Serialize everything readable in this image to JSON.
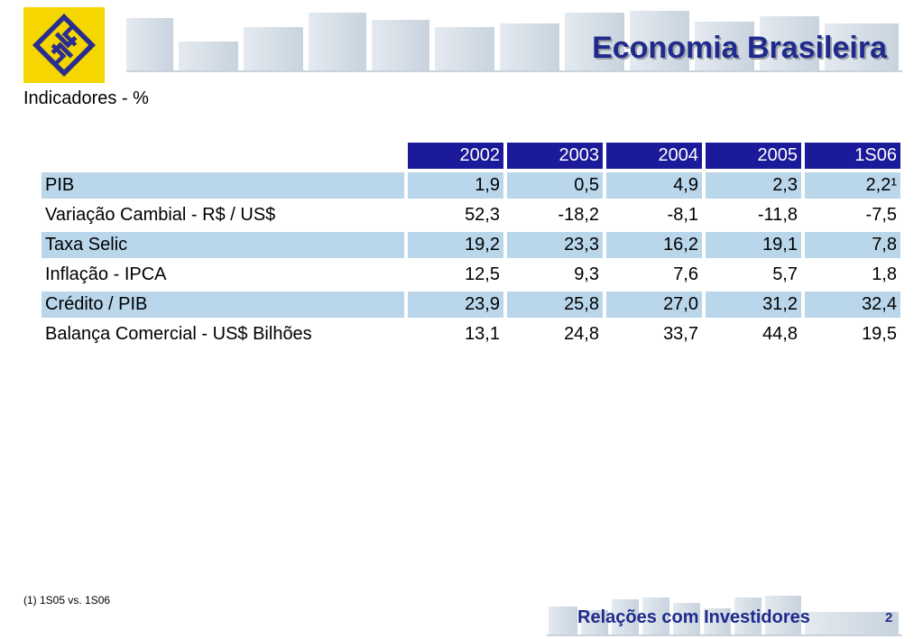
{
  "header": {
    "title": "Economia Brasileira",
    "brand_color": "#f5d600",
    "title_color": "#1f2a8c"
  },
  "subtitle": "Indicadores - %",
  "table": {
    "columns": [
      "2002",
      "2003",
      "2004",
      "2005",
      "1S06"
    ],
    "rows": [
      {
        "label": "PIB",
        "values": [
          "1,9",
          "0,5",
          "4,9",
          "2,3",
          "2,2¹"
        ]
      },
      {
        "label": "Variação Cambial - R$ / US$",
        "values": [
          "52,3",
          "-18,2",
          "-8,1",
          "-11,8",
          "-7,5"
        ]
      },
      {
        "label": "Taxa Selic",
        "values": [
          "19,2",
          "23,3",
          "16,2",
          "19,1",
          "7,8"
        ]
      },
      {
        "label": "Inflação - IPCA",
        "values": [
          "12,5",
          "9,3",
          "7,6",
          "5,7",
          "1,8"
        ]
      },
      {
        "label": "Crédito / PIB",
        "values": [
          "23,9",
          "25,8",
          "27,0",
          "31,2",
          "32,4"
        ]
      },
      {
        "label": "Balança Comercial - US$ Bilhões",
        "values": [
          "13,1",
          "24,8",
          "33,7",
          "44,8",
          "19,5"
        ]
      }
    ],
    "header_color": "#1a1a9a",
    "shade_color": "#b9d6ea"
  },
  "footnote": "(1) 1S05 vs. 1S06",
  "footer": {
    "label": "Relações com Investidores",
    "page_number": "2"
  }
}
